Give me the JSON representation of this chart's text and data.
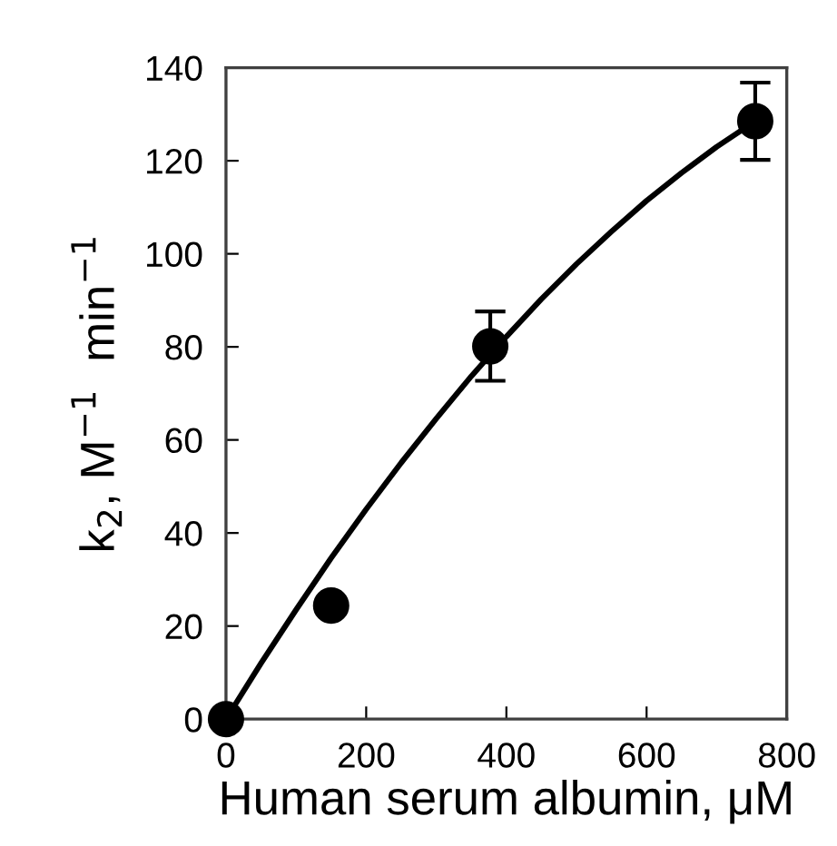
{
  "chart_data": {
    "type": "scatter",
    "xlabel": "Human serum albumin, μM",
    "ylabel": "k$_{2}$, M$^{−1}$  min$^{−1}$",
    "xlim": [
      0,
      800
    ],
    "xticks": [
      0,
      200,
      400,
      600,
      800
    ],
    "ylim": [
      0,
      140
    ],
    "yticks": [
      0,
      20,
      40,
      60,
      80,
      100,
      120,
      140
    ],
    "grid": false,
    "legend": false,
    "series": [
      {
        "type": "line",
        "color": "#000000",
        "marker": "none",
        "line_style": "solid",
        "x": [
          0,
          50,
          100,
          150,
          200,
          250,
          300,
          350,
          400,
          450,
          500,
          550,
          600,
          650,
          700,
          755
        ],
        "values": [
          0,
          12.0,
          23.5,
          34.6,
          45.1,
          55.1,
          64.6,
          73.7,
          82.2,
          90.3,
          97.8,
          104.8,
          111.4,
          117.4,
          123.0,
          128.5
        ]
      },
      {
        "color": "#000000",
        "marker": "circle",
        "x": [
          0,
          150,
          377,
          755
        ],
        "values": [
          0,
          24.4,
          80.1,
          128.5
        ],
        "errors": [
          null,
          null,
          [
            72.7,
            87.6
          ],
          [
            120.2,
            136.8
          ]
        ]
      }
    ]
  }
}
